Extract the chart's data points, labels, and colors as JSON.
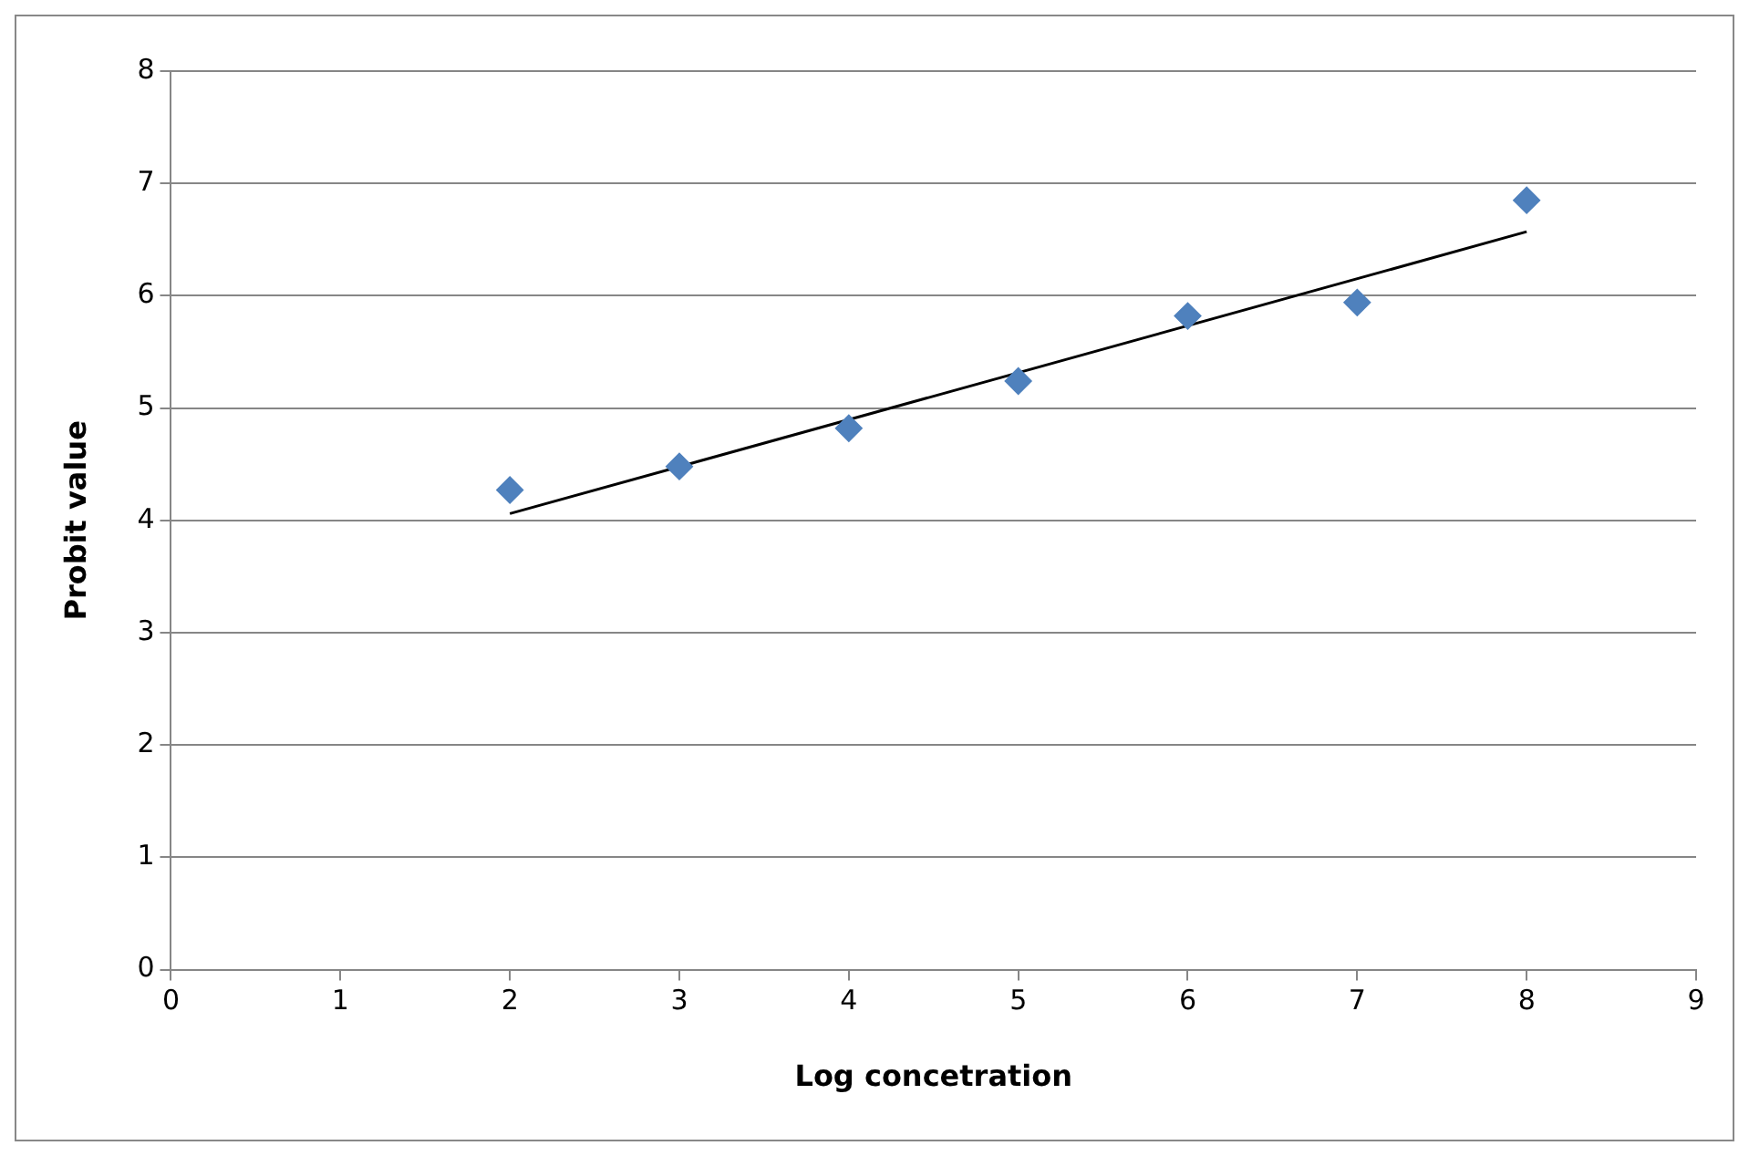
{
  "chart_data": {
    "type": "scatter",
    "xlabel": "Log concetration",
    "ylabel": "Probit value",
    "xlim": [
      0,
      9
    ],
    "xticks": [
      0,
      1,
      2,
      3,
      4,
      5,
      6,
      7,
      8,
      9
    ],
    "ylim": [
      0,
      8
    ],
    "yticks": [
      0,
      1,
      2,
      3,
      4,
      5,
      6,
      7,
      8
    ],
    "grid": "y",
    "legend": false,
    "marker": "diamond",
    "series": [
      {
        "color": "#4f81bd",
        "x": [
          2,
          3,
          4,
          5,
          6,
          7,
          8
        ],
        "values": [
          4.27,
          4.48,
          4.82,
          5.24,
          5.82,
          5.94,
          6.85
        ]
      },
      {
        "type": "line",
        "color": "#000000",
        "marker": "none",
        "line_style": "solid",
        "x": [
          2,
          8
        ],
        "values": [
          4.06,
          6.57
        ]
      }
    ]
  }
}
